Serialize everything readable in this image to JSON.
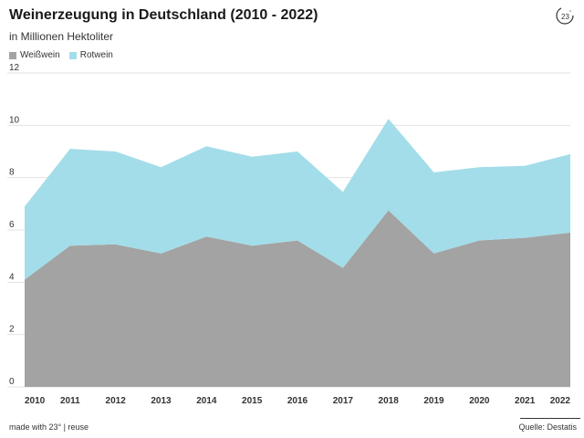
{
  "title": "Weinerzeugung in Deutschland (2010 - 2022)",
  "subtitle": "in Millionen Hektoliter",
  "logo_icon": "23-degrees-logo-icon",
  "footer": {
    "left": "made with 23° | reuse",
    "right": "Quelle: Destatis"
  },
  "chart_data": {
    "type": "area",
    "stacked": true,
    "x": [
      "2010",
      "2011",
      "2012",
      "2013",
      "2014",
      "2015",
      "2016",
      "2017",
      "2018",
      "2019",
      "2020",
      "2021",
      "2022"
    ],
    "series": [
      {
        "name": "Weißwein",
        "color": "#a3a3a3",
        "values": [
          4.1,
          5.4,
          5.45,
          5.1,
          5.75,
          5.4,
          5.6,
          4.55,
          6.75,
          5.1,
          5.6,
          5.7,
          5.9
        ]
      },
      {
        "name": "Rotwein",
        "color": "#a3dde9",
        "values": [
          2.8,
          3.7,
          3.55,
          3.3,
          3.45,
          3.4,
          3.4,
          2.9,
          3.5,
          3.1,
          2.8,
          2.75,
          3.0
        ]
      }
    ],
    "ylim": [
      0,
      12
    ],
    "yticks": [
      "0",
      "2",
      "4",
      "6",
      "8",
      "10",
      "12"
    ],
    "grid": true,
    "legend_position": "top-left"
  }
}
